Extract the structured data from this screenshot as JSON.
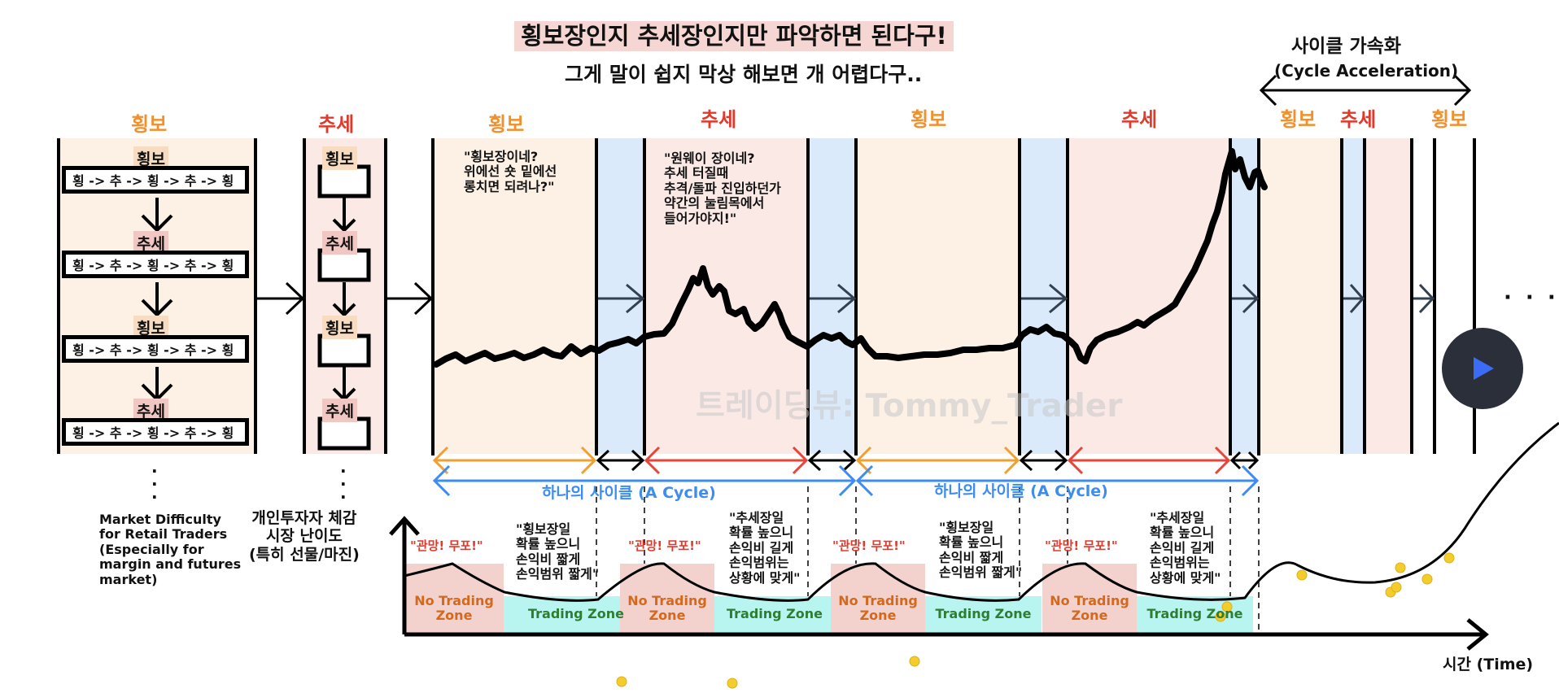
{
  "title": "횡보장인지 추세장인지만 파악하면 된다구!",
  "subtitle": "그게 말이 쉽지 막상 해보면 개 어렵다구..",
  "acceleration": {
    "label_ko": "사이클 가속화",
    "label_en": "(Cycle Acceleration)"
  },
  "phase_headers": {
    "col1": "횡보",
    "col2": "추세",
    "h1": "횡보",
    "t1": "추세",
    "h2": "횡보",
    "t2": "추세",
    "acc_h1": "횡보",
    "acc_t1": "추세",
    "acc_h2": "횡보"
  },
  "left_column": {
    "tags": [
      "횡보",
      "추세",
      "횡보",
      "추세"
    ],
    "sequence": "횡 -> 추 -> 횡 -> 추 -> 횡",
    "ellipsis": ".\n.\n."
  },
  "middle_column": {
    "tags": [
      "횡보",
      "추세",
      "횡보",
      "추세"
    ],
    "ellipsis": ".\n.\n."
  },
  "quotes": {
    "range": "\"횡보장이네?\n위에선 숏 밑에선\n롱치면 되려나?\"",
    "trend": "\"원웨이 장이네?\n추세 터질때\n추격/돌파 진입하던가\n약간의 눌림목에서\n들어가야지!\""
  },
  "cycle_labels": [
    "하나의 사이클 (A Cycle)",
    "하나의 사이클 (A Cycle)"
  ],
  "difficulty_label_en": "Market Difficulty\nfor Retail Traders\n(Especially for\nmargin and futures\nmarket)",
  "difficulty_label_ko": "개인투자자 체감\n시장 난이도\n(특히 선물/마진)",
  "hope_label": "\"관망! 무포!\"",
  "zone_no_trade": "No Trading\nZone",
  "zone_trade": "Trading Zone",
  "zone_notes": {
    "range": "\"횡보장일\n확률 높으니\n손익비 짧게\n손익범위 짧게\"",
    "trend": "\"추세장일\n확률 높으니\n손익비 길게\n손익범위는\n상황에 맞게\""
  },
  "time_axis": "시간 (Time)",
  "watermark": "트레이딩뷰: Tommy_Trader",
  "more": "· · ·",
  "colors": {
    "range_fill": "#fdf1e6",
    "trend_fill": "#fbe9e6",
    "transition_fill": "#dbeafb",
    "range_arrow": "#f0a030",
    "trend_arrow": "#e8453a",
    "cycle_blue": "#3d8cf0",
    "no_trade_fill": "#f3d2cd",
    "trade_fill": "#b8f5f0",
    "dot_yellow": "#f4cc2c"
  },
  "icons": [
    "play-icon",
    "right-arrow-icon",
    "down-arrow-icon",
    "double-arrow-icon"
  ]
}
